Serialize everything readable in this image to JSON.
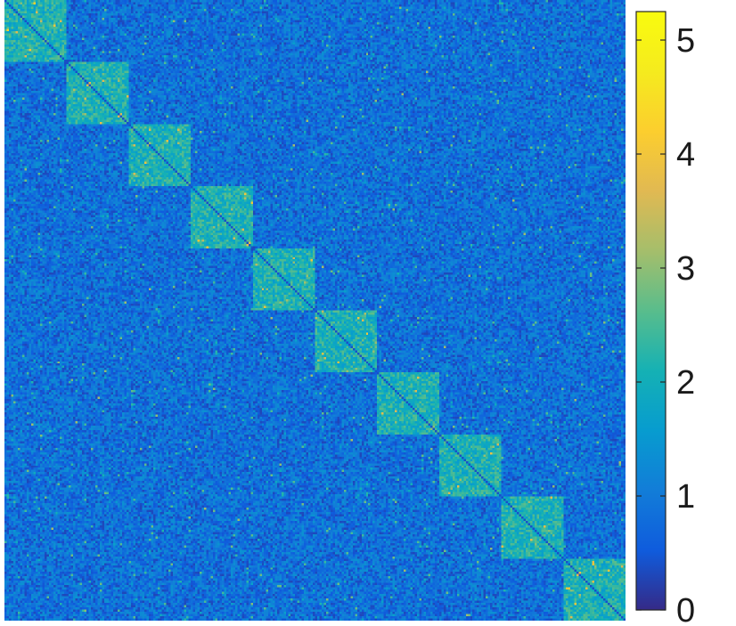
{
  "chart_data": {
    "type": "heatmap",
    "title": "",
    "xlabel": "",
    "ylabel": "",
    "matrix_size": 280,
    "value_range": [
      0,
      5.25
    ],
    "colormap": "parula",
    "background_level": 0.85,
    "block_level": 2.1,
    "diagonal_blocks": [
      {
        "start": 0,
        "end": 27
      },
      {
        "start": 28,
        "end": 55
      },
      {
        "start": 56,
        "end": 83
      },
      {
        "start": 84,
        "end": 111
      },
      {
        "start": 112,
        "end": 139
      },
      {
        "start": 140,
        "end": 167
      },
      {
        "start": 168,
        "end": 195
      },
      {
        "start": 196,
        "end": 223
      },
      {
        "start": 224,
        "end": 251
      },
      {
        "start": 252,
        "end": 279
      }
    ],
    "colorbar": {
      "ticks": [
        0,
        1,
        2,
        3,
        4,
        5
      ],
      "tick_labels": [
        "0",
        "1",
        "2",
        "3",
        "4",
        "5"
      ],
      "min": 0,
      "max": 5.25
    }
  }
}
